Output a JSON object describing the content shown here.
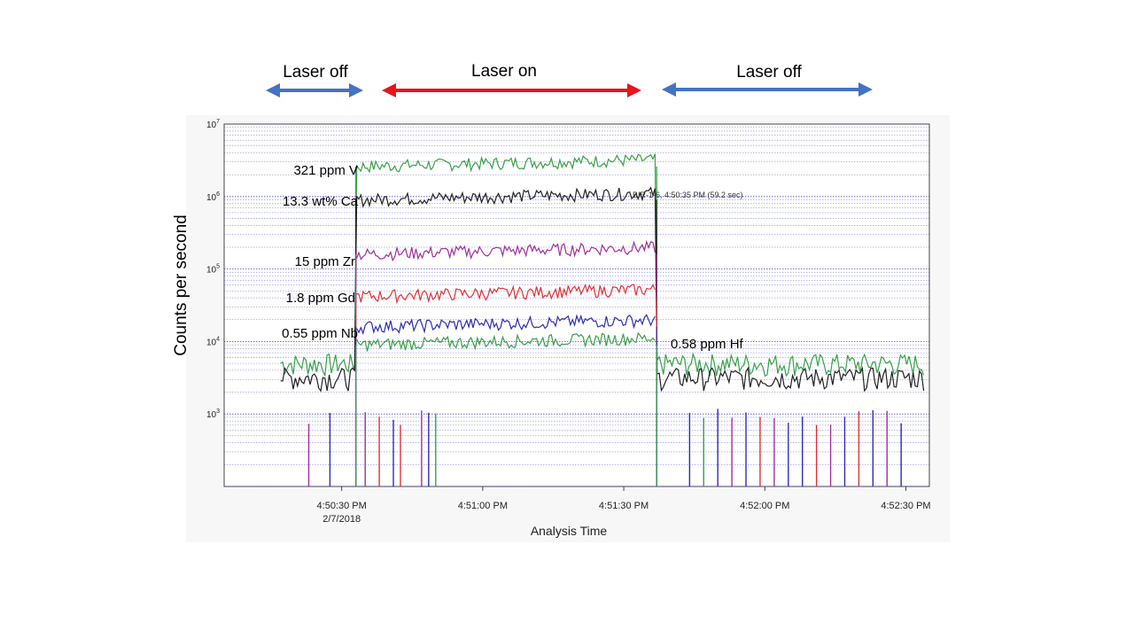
{
  "annotations_top": {
    "laser_off_left": "Laser off",
    "laser_on": "Laser on",
    "laser_off_right": "Laser off"
  },
  "colors": {
    "arrow_off": "#4472c4",
    "arrow_on": "#e8141b",
    "grid": "#3333cc",
    "background_panel": "#f7f7f7"
  },
  "chart_data": {
    "type": "line",
    "ylabel": "Counts per second",
    "xlabel": "Analysis Time",
    "y_scale": "log",
    "ylim": [
      100,
      10000000
    ],
    "y_ticks": [
      {
        "value": 1000,
        "label_base": "10",
        "label_exp": "3"
      },
      {
        "value": 10000,
        "label_base": "10",
        "label_exp": "4"
      },
      {
        "value": 100000,
        "label_base": "10",
        "label_exp": "5"
      },
      {
        "value": 1000000,
        "label_base": "10",
        "label_exp": "6"
      },
      {
        "value": 10000000,
        "label_base": "10",
        "label_exp": "7"
      }
    ],
    "x_range": [
      "4:50:05 PM",
      "4:52:35 PM"
    ],
    "x_ticks": [
      {
        "time": "4:50:30 PM",
        "label": "4:50:30 PM",
        "sublabel": "2/7/2018"
      },
      {
        "time": "4:51:00 PM",
        "label": "4:51:00 PM",
        "sublabel": ""
      },
      {
        "time": "4:51:30 PM",
        "label": "4:51:30 PM",
        "sublabel": ""
      },
      {
        "time": "4:52:00 PM",
        "label": "4:52:00 PM",
        "sublabel": ""
      },
      {
        "time": "4:52:30 PM",
        "label": "4:52:30 PM",
        "sublabel": ""
      }
    ],
    "grid": true,
    "marker_annotation": "BIR-1-6, 4:50:35 PM (59.2 sec)",
    "laser_on_start": "4:50:33 PM",
    "laser_on_end": "4:51:37 PM",
    "series": [
      {
        "label": "321 ppm V",
        "color": "#3aa04a",
        "plateau": 2600000,
        "background": 5000
      },
      {
        "label": "13.3 wt% Ca",
        "color": "#222222",
        "plateau": 900000,
        "background": 3200
      },
      {
        "label": "15 ppm Zr",
        "color": "#a0309a",
        "plateau": 160000,
        "background": 0
      },
      {
        "label": "1.8 ppm Gd",
        "color": "#e03238",
        "plateau": 42000,
        "background": 0
      },
      {
        "label": "0.55 ppm Nb",
        "color": "#2d2db4",
        "plateau": 16000,
        "background": 0
      },
      {
        "label": "0.58 ppm Hf",
        "color": "#3aa04a",
        "plateau": 9000,
        "background": 0
      }
    ]
  }
}
